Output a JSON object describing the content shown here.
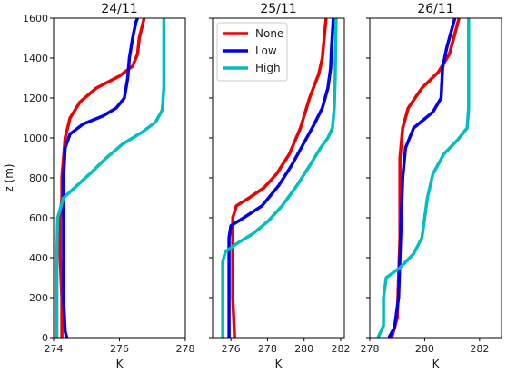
{
  "chart_data": [
    {
      "type": "line",
      "title": "24/11",
      "xlabel": "K",
      "ylabel": "z (m)",
      "xlim": [
        274,
        278
      ],
      "ylim": [
        0,
        1600
      ],
      "xticks": [
        "274",
        "276",
        "278"
      ],
      "yticks": [
        "0",
        "200",
        "400",
        "600",
        "800",
        "1000",
        "1200",
        "1400",
        "1600"
      ],
      "colors": {
        "None": "#ee0000",
        "Low": "#0000ee",
        "High": "#00bfbf"
      },
      "series": [
        {
          "name": "None",
          "points": [
            [
              274.25,
              0
            ],
            [
              274.25,
              200
            ],
            [
              274.2,
              400
            ],
            [
              274.2,
              600
            ],
            [
              274.25,
              700
            ],
            [
              274.25,
              800
            ],
            [
              274.3,
              900
            ],
            [
              274.35,
              1000
            ],
            [
              274.5,
              1100
            ],
            [
              274.8,
              1180
            ],
            [
              275.3,
              1250
            ],
            [
              276.0,
              1310
            ],
            [
              276.4,
              1360
            ],
            [
              276.55,
              1420
            ],
            [
              276.6,
              1500
            ],
            [
              276.75,
              1600
            ]
          ]
        },
        {
          "name": "Low",
          "points": [
            [
              274.4,
              0
            ],
            [
              274.35,
              30
            ],
            [
              274.3,
              200
            ],
            [
              274.3,
              400
            ],
            [
              274.3,
              600
            ],
            [
              274.3,
              800
            ],
            [
              274.35,
              950
            ],
            [
              274.5,
              1020
            ],
            [
              274.9,
              1070
            ],
            [
              275.5,
              1110
            ],
            [
              275.9,
              1150
            ],
            [
              276.15,
              1200
            ],
            [
              276.25,
              1300
            ],
            [
              276.3,
              1400
            ],
            [
              276.4,
              1500
            ],
            [
              276.5,
              1580
            ],
            [
              276.55,
              1600
            ]
          ]
        },
        {
          "name": "High",
          "points": [
            [
              274.1,
              0
            ],
            [
              274.1,
              200
            ],
            [
              274.1,
              400
            ],
            [
              274.12,
              600
            ],
            [
              274.3,
              700
            ],
            [
              274.7,
              760
            ],
            [
              275.1,
              820
            ],
            [
              275.6,
              900
            ],
            [
              276.1,
              970
            ],
            [
              276.7,
              1030
            ],
            [
              277.1,
              1080
            ],
            [
              277.3,
              1140
            ],
            [
              277.35,
              1250
            ],
            [
              277.35,
              1400
            ],
            [
              277.35,
              1600
            ]
          ]
        }
      ]
    },
    {
      "type": "line",
      "title": "25/11",
      "xlabel": "K",
      "xlim": [
        275,
        282.2
      ],
      "ylim": [
        0,
        1600
      ],
      "xticks": [
        "276",
        "278",
        "280",
        "282"
      ],
      "legend": {
        "placement": "top-left",
        "entries": [
          "None",
          "Low",
          "High"
        ]
      },
      "colors": {
        "None": "#ee0000",
        "Low": "#0000ee",
        "High": "#00bfbf"
      },
      "series": [
        {
          "name": "None",
          "points": [
            [
              276.2,
              0
            ],
            [
              276.1,
              200
            ],
            [
              276.1,
              400
            ],
            [
              276.1,
              600
            ],
            [
              276.3,
              660
            ],
            [
              277.0,
              700
            ],
            [
              277.8,
              750
            ],
            [
              278.5,
              820
            ],
            [
              279.2,
              920
            ],
            [
              279.8,
              1050
            ],
            [
              280.3,
              1200
            ],
            [
              280.8,
              1320
            ],
            [
              281.0,
              1400
            ],
            [
              281.1,
              1500
            ],
            [
              281.2,
              1600
            ]
          ]
        },
        {
          "name": "Low",
          "points": [
            [
              275.9,
              0
            ],
            [
              275.9,
              200
            ],
            [
              275.9,
              400
            ],
            [
              275.9,
              500
            ],
            [
              276.0,
              560
            ],
            [
              276.7,
              600
            ],
            [
              277.7,
              660
            ],
            [
              278.6,
              760
            ],
            [
              279.3,
              860
            ],
            [
              279.9,
              960
            ],
            [
              280.5,
              1060
            ],
            [
              281.0,
              1150
            ],
            [
              281.3,
              1250
            ],
            [
              281.45,
              1350
            ],
            [
              281.5,
              1450
            ],
            [
              281.6,
              1600
            ]
          ]
        },
        {
          "name": "High",
          "points": [
            [
              275.55,
              0
            ],
            [
              275.55,
              200
            ],
            [
              275.55,
              380
            ],
            [
              275.7,
              430
            ],
            [
              276.3,
              470
            ],
            [
              277.2,
              520
            ],
            [
              278.0,
              580
            ],
            [
              278.8,
              660
            ],
            [
              279.6,
              760
            ],
            [
              280.3,
              860
            ],
            [
              280.9,
              950
            ],
            [
              281.3,
              1000
            ],
            [
              281.55,
              1050
            ],
            [
              281.65,
              1150
            ],
            [
              281.7,
              1300
            ],
            [
              281.75,
              1600
            ]
          ]
        }
      ]
    },
    {
      "type": "line",
      "title": "26/11",
      "xlabel": "K",
      "xlim": [
        278,
        282.8
      ],
      "ylim": [
        0,
        1600
      ],
      "xticks": [
        "278",
        "280",
        "282"
      ],
      "colors": {
        "None": "#ee0000",
        "Low": "#0000ee",
        "High": "#00bfbf"
      },
      "series": [
        {
          "name": "None",
          "points": [
            [
              278.8,
              0
            ],
            [
              279.0,
              100
            ],
            [
              279.05,
              300
            ],
            [
              279.1,
              500
            ],
            [
              279.1,
              700
            ],
            [
              279.1,
              900
            ],
            [
              279.2,
              1050
            ],
            [
              279.4,
              1150
            ],
            [
              279.9,
              1250
            ],
            [
              280.5,
              1330
            ],
            [
              280.9,
              1420
            ],
            [
              281.1,
              1520
            ],
            [
              281.25,
              1600
            ]
          ]
        },
        {
          "name": "Low",
          "points": [
            [
              278.7,
              0
            ],
            [
              278.9,
              50
            ],
            [
              279.05,
              200
            ],
            [
              279.1,
              400
            ],
            [
              279.15,
              600
            ],
            [
              279.2,
              800
            ],
            [
              279.3,
              950
            ],
            [
              279.6,
              1050
            ],
            [
              280.3,
              1130
            ],
            [
              280.6,
              1200
            ],
            [
              280.65,
              1350
            ],
            [
              280.8,
              1450
            ],
            [
              281.1,
              1600
            ]
          ]
        },
        {
          "name": "High",
          "points": [
            [
              278.3,
              0
            ],
            [
              278.5,
              60
            ],
            [
              278.5,
              200
            ],
            [
              278.6,
              300
            ],
            [
              279.1,
              350
            ],
            [
              279.6,
              420
            ],
            [
              279.9,
              500
            ],
            [
              280.0,
              600
            ],
            [
              280.1,
              700
            ],
            [
              280.3,
              820
            ],
            [
              280.7,
              920
            ],
            [
              281.2,
              990
            ],
            [
              281.55,
              1050
            ],
            [
              281.6,
              1150
            ],
            [
              281.6,
              1300
            ],
            [
              281.6,
              1600
            ]
          ]
        }
      ]
    }
  ]
}
